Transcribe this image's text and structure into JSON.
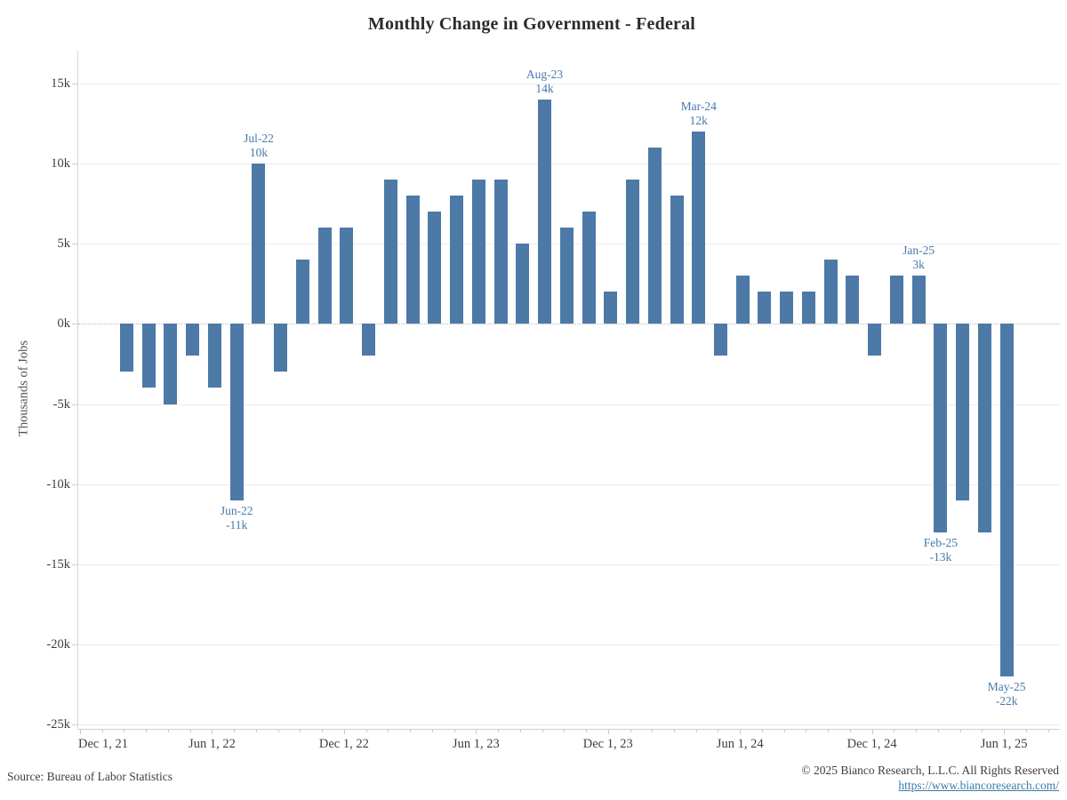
{
  "header": {
    "title": "Monthly Change in Government - Federal"
  },
  "chart_data": {
    "type": "bar",
    "title": "Monthly Change in Government - Federal",
    "xlabel": "",
    "ylabel": "Thousands of Jobs",
    "value_unit": "thousands of jobs (k)",
    "ylim": [
      -25,
      15
    ],
    "ytick_step": 5,
    "grid": "horizontal gridlines on; dotted line at zero",
    "legend": "none",
    "bar_color": "#4d79a7",
    "annotation_color": "#4878ad",
    "categories": [
      "Jan-22",
      "Feb-22",
      "Mar-22",
      "Apr-22",
      "May-22",
      "Jun-22",
      "Jul-22",
      "Aug-22",
      "Sep-22",
      "Oct-22",
      "Nov-22",
      "Dec-22",
      "Jan-23",
      "Feb-23",
      "Mar-23",
      "Apr-23",
      "May-23",
      "Jun-23",
      "Jul-23",
      "Aug-23",
      "Sep-23",
      "Oct-23",
      "Nov-23",
      "Dec-23",
      "Jan-24",
      "Feb-24",
      "Mar-24",
      "Apr-24",
      "May-24",
      "Jun-24",
      "Jul-24",
      "Aug-24",
      "Sep-24",
      "Oct-24",
      "Nov-24",
      "Dec-24",
      "Jan-25",
      "Feb-25",
      "Mar-25",
      "Apr-25",
      "May-25"
    ],
    "values": [
      -3,
      -4,
      -5,
      -2,
      -4,
      -11,
      10,
      -3,
      4,
      6,
      6,
      -2,
      9,
      8,
      7,
      8,
      9,
      9,
      5,
      14,
      6,
      7,
      2,
      9,
      11,
      8,
      12,
      -2,
      3,
      2,
      2,
      2,
      4,
      3,
      -2,
      3,
      3,
      -13,
      -11,
      -13,
      -22
    ],
    "x_tick_labels": [
      "Dec 1, 21",
      "Jun 1, 22",
      "Dec 1, 22",
      "Jun 1, 23",
      "Dec 1, 23",
      "Jun 1, 24",
      "Dec 1, 24",
      "Jun 1, 25"
    ],
    "y_tick_labels": [
      "15k",
      "10k",
      "5k",
      "0k",
      "-5k",
      "-10k",
      "-15k",
      "-20k",
      "-25k"
    ],
    "annotations": [
      {
        "category": "Jun-22",
        "lines": [
          "Jun-22",
          "-11k"
        ],
        "side": "below"
      },
      {
        "category": "Jul-22",
        "lines": [
          "Jul-22",
          "10k"
        ],
        "side": "above"
      },
      {
        "category": "Aug-23",
        "lines": [
          "Aug-23",
          "14k"
        ],
        "side": "above"
      },
      {
        "category": "Mar-24",
        "lines": [
          "Mar-24",
          "12k"
        ],
        "side": "above"
      },
      {
        "category": "Jan-25",
        "lines": [
          "Jan-25",
          "3k"
        ],
        "side": "above"
      },
      {
        "category": "Feb-25",
        "lines": [
          "Feb-25",
          "-13k"
        ],
        "side": "below"
      },
      {
        "category": "May-25",
        "lines": [
          "May-25",
          "-22k"
        ],
        "side": "below"
      }
    ]
  },
  "footer": {
    "source": "Source: Bureau of Labor Statistics",
    "copyright": "© 2025 Bianco Research, L.L.C. All Rights Reserved",
    "link": "https://www.biancoresearch.com/"
  }
}
